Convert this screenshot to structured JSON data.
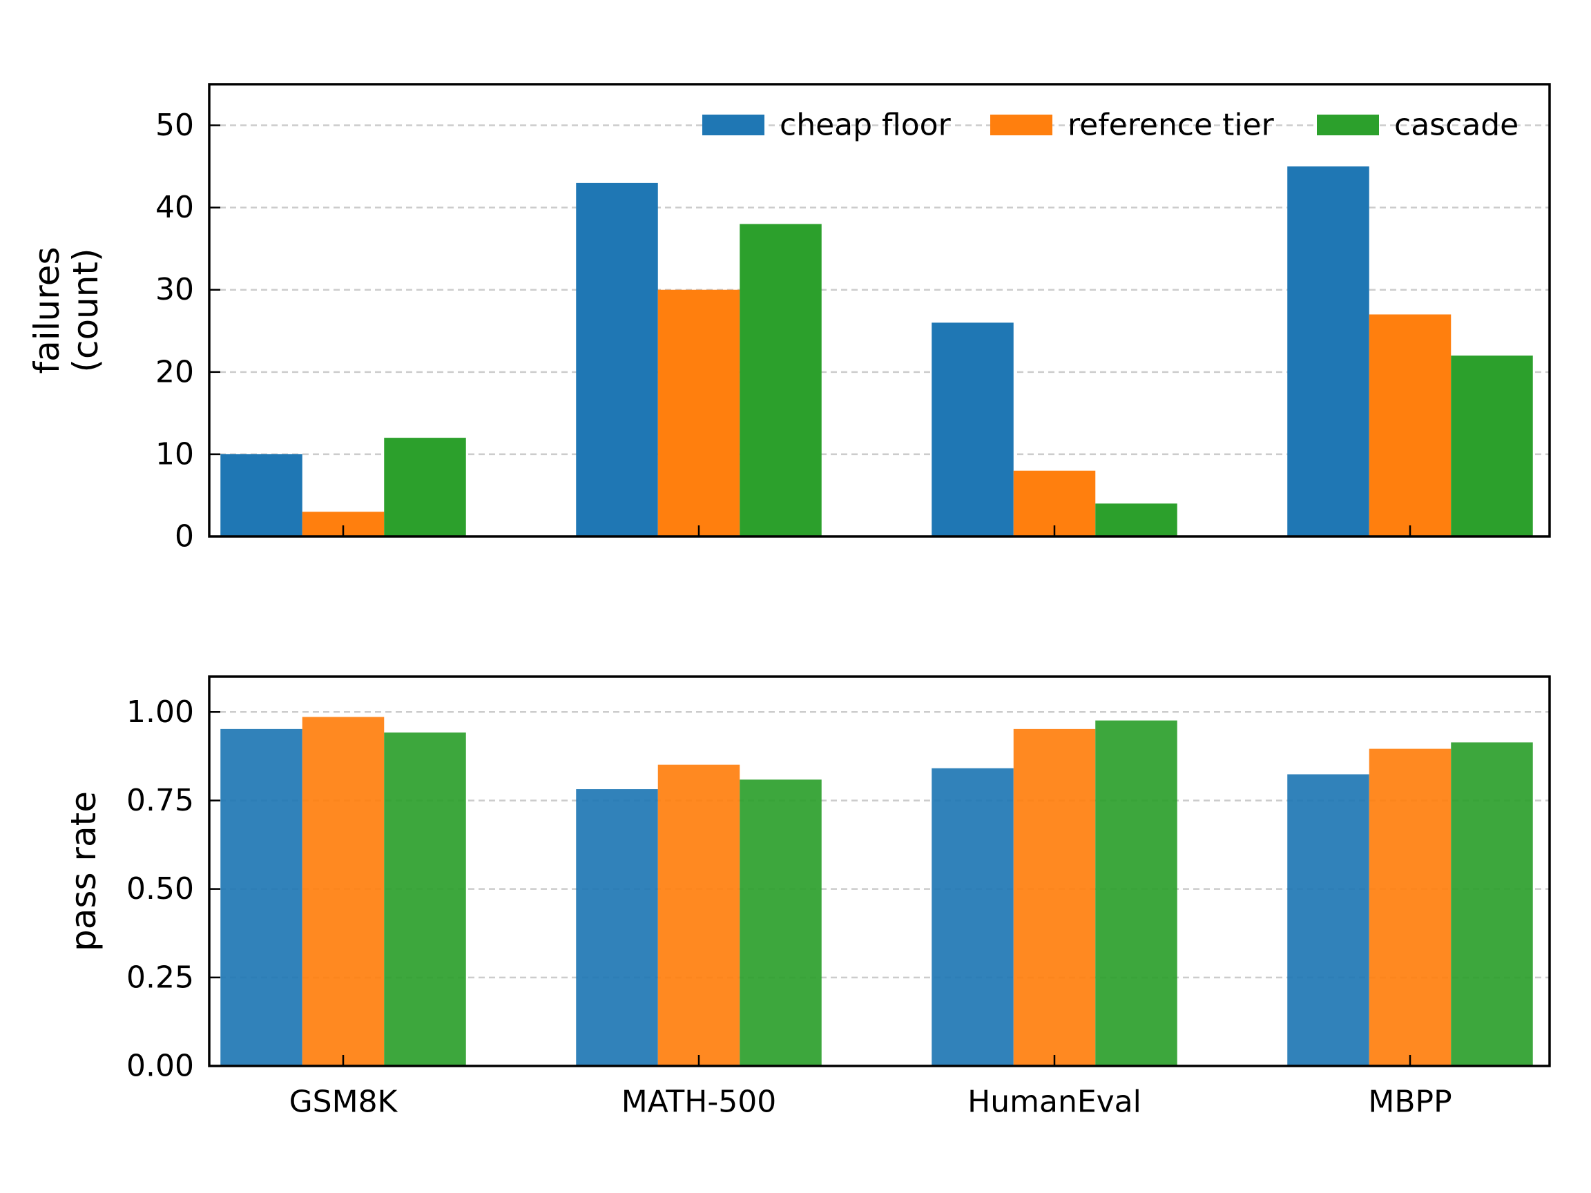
{
  "chart_data": [
    {
      "type": "bar",
      "categories": [
        "GSM8K",
        "MATH-500",
        "HumanEval",
        "MBPP"
      ],
      "series": [
        {
          "name": "cheap floor",
          "color": "#1f77b4",
          "values": [
            10,
            43,
            26,
            45
          ]
        },
        {
          "name": "reference tier",
          "color": "#ff7f0e",
          "values": [
            3,
            30,
            8,
            27
          ]
        },
        {
          "name": "cascade",
          "color": "#2ca02c",
          "values": [
            12,
            38,
            4,
            22
          ]
        }
      ],
      "ylabel_lines": [
        "failures",
        "(count)"
      ],
      "ylim": [
        0,
        55
      ],
      "yticks": [
        0,
        10,
        20,
        30,
        40,
        50
      ],
      "ytick_labels": [
        "0",
        "10",
        "20",
        "30",
        "40",
        "50"
      ],
      "grid": "y-dashed",
      "legend": "top-right",
      "show_xticklabels": false
    },
    {
      "type": "bar",
      "categories": [
        "GSM8K",
        "MATH-500",
        "HumanEval",
        "MBPP"
      ],
      "series": [
        {
          "name": "cheap floor",
          "color": "#1f77b4",
          "values": [
            0.952,
            0.782,
            0.841,
            0.824
          ]
        },
        {
          "name": "reference tier",
          "color": "#ff7f0e",
          "values": [
            0.986,
            0.851,
            0.952,
            0.896
          ]
        },
        {
          "name": "cascade",
          "color": "#2ca02c",
          "values": [
            0.942,
            0.809,
            0.976,
            0.914
          ]
        }
      ],
      "ylabel_lines": [
        "pass rate"
      ],
      "ylim": [
        0,
        1.1
      ],
      "yticks": [
        0,
        0.25,
        0.5,
        0.75,
        1.0
      ],
      "ytick_labels": [
        "0.00",
        "0.25",
        "0.50",
        "0.75",
        "1.00"
      ],
      "grid": "y-dashed",
      "show_xticklabels": true
    }
  ]
}
